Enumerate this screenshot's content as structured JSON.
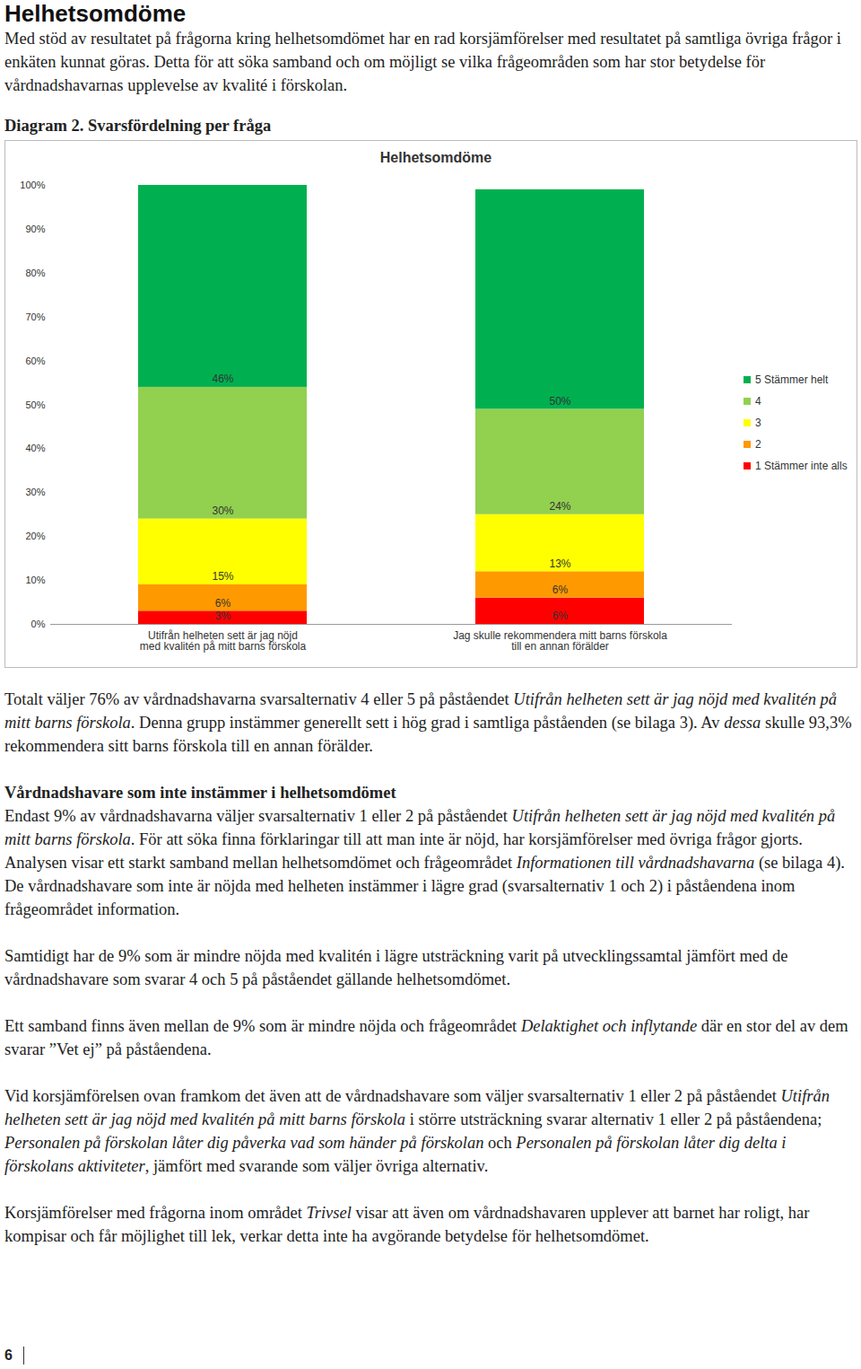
{
  "header": {
    "title": "Helhetsomdöme"
  },
  "intro": [
    [
      {
        "text": "Med stöd av resultatet på frågorna kring helhetsomdömet har en rad korsjämförelser med resultatet på samtliga övriga frågor i enkäten kunnat göras. Detta för att söka samband och om möjligt se vilka frågeområden som har stor betydelse för vårdnadshavarnas upplevelse av kvalité i förskolan."
      }
    ]
  ],
  "caption": "Diagram 2. Svarsfördelning per fråga",
  "chart_data": {
    "type": "bar",
    "stacked": true,
    "title": "Helhetsomdöme",
    "categories": [
      "Utifrån helheten sett är jag nöjd\nmed kvalitén på mitt barns förskola",
      "Jag skulle rekommendera mitt barns förskola\ntill en annan förälder"
    ],
    "series": [
      {
        "name": "1 Stämmer inte alls",
        "color": "#ff0000",
        "values": [
          3,
          6
        ],
        "value_labels": [
          "3%",
          "6%"
        ]
      },
      {
        "name": "2",
        "color": "#ff9900",
        "values": [
          6,
          6
        ],
        "value_labels": [
          "6%",
          "6%"
        ]
      },
      {
        "name": "3",
        "color": "#ffff00",
        "values": [
          15,
          13
        ],
        "value_labels": [
          "15%",
          "13%"
        ]
      },
      {
        "name": "4",
        "color": "#92d050",
        "values": [
          30,
          24
        ],
        "value_labels": [
          "30%",
          "24%"
        ]
      },
      {
        "name": "5 Stämmer helt",
        "color": "#00b050",
        "values": [
          46,
          50
        ],
        "value_labels": [
          "46%",
          "50%"
        ]
      }
    ],
    "ylim": [
      0,
      100
    ],
    "yticks": [
      {
        "value": 0,
        "label": "0%"
      },
      {
        "value": 10,
        "label": "10%"
      },
      {
        "value": 20,
        "label": "20%"
      },
      {
        "value": 30,
        "label": "30%"
      },
      {
        "value": 40,
        "label": "40%"
      },
      {
        "value": 50,
        "label": "50%"
      },
      {
        "value": 60,
        "label": "60%"
      },
      {
        "value": 70,
        "label": "70%"
      },
      {
        "value": 80,
        "label": "80%"
      },
      {
        "value": 90,
        "label": "90%"
      },
      {
        "value": 100,
        "label": "100%"
      }
    ],
    "data_labels": true,
    "legend": "right"
  },
  "body": [
    {
      "runs": [
        {
          "text": "Totalt väljer 76% av vårdnadshavarna svarsalternativ 4 eller 5 på påståendet "
        },
        {
          "text": "Utifrån helheten sett är jag nöjd med kvalitén på mitt barns förskola",
          "italic": true
        },
        {
          "text": ". Denna grupp instämmer generellt sett i hög grad i samtliga påståenden (se bilaga 3). Av "
        },
        {
          "text": "dessa",
          "italic": true
        },
        {
          "text": " skulle 93,3% rekommendera sitt barns förskola till en annan förälder."
        }
      ]
    },
    {
      "heading": "Vårdnadshavare som inte instämmer i helhetsomdömet"
    },
    {
      "runs": [
        {
          "text": "Endast 9% av vårdnadshavarna väljer svarsalternativ 1 eller 2 på påståendet "
        },
        {
          "text": "Utifrån helheten sett är jag nöjd med kvalitén på mitt barns förskola",
          "italic": true
        },
        {
          "text": ". För att söka finna förklaringar till att man inte är nöjd, har korsjämförelser med övriga frågor gjorts. Analysen visar ett starkt samband mellan helhetsomdömet och frågeområdet "
        },
        {
          "text": "Informationen till vårdnadshavarna",
          "italic": true
        },
        {
          "text": " (se bilaga 4). De vårdnadshavare som inte är nöjda med helheten instämmer i lägre grad (svarsalternativ 1 och 2) i påståendena inom frågeområdet information."
        }
      ]
    },
    {
      "runs": [
        {
          "text": "Samtidigt har de 9% som är mindre nöjda med kvalitén i lägre utsträckning varit på utvecklingssamtal jämfört med de vårdnadshavare som svarar 4 och 5 på påståendet gällande helhetsomdömet."
        }
      ]
    },
    {
      "runs": [
        {
          "text": "Ett samband finns även mellan de 9% som är mindre nöjda och frågeområdet "
        },
        {
          "text": "Delaktighet och inflytande",
          "italic": true
        },
        {
          "text": " där en stor del av dem svarar ”Vet ej” på påståendena."
        }
      ]
    },
    {
      "runs": [
        {
          "text": "Vid korsjämförelsen ovan framkom det även att de vårdnadshavare som väljer svarsalternativ 1 eller 2 på påståendet "
        },
        {
          "text": "Utifrån helheten sett är jag nöjd med kvalitén på mitt barns förskola",
          "italic": true
        },
        {
          "text": " i större utsträckning svarar alternativ 1 eller 2 på påståendena; "
        },
        {
          "text": "Personalen på förskolan låter dig påverka vad som händer på förskolan",
          "italic": true
        },
        {
          "text": " och "
        },
        {
          "text": "Personalen på förskolan låter dig delta i förskolans aktiviteter",
          "italic": true
        },
        {
          "text": ", jämfört med svarande som väljer övriga alternativ."
        }
      ]
    },
    {
      "runs": [
        {
          "text": "Korsjämförelser med frågorna inom området "
        },
        {
          "text": "Trivsel",
          "italic": true
        },
        {
          "text": " visar att även om vårdnadshavaren upplever att barnet har roligt, har kompisar och får möjlighet till lek, verkar detta inte ha avgörande betydelse för helhetsomdömet."
        }
      ]
    }
  ],
  "page_number": "6"
}
